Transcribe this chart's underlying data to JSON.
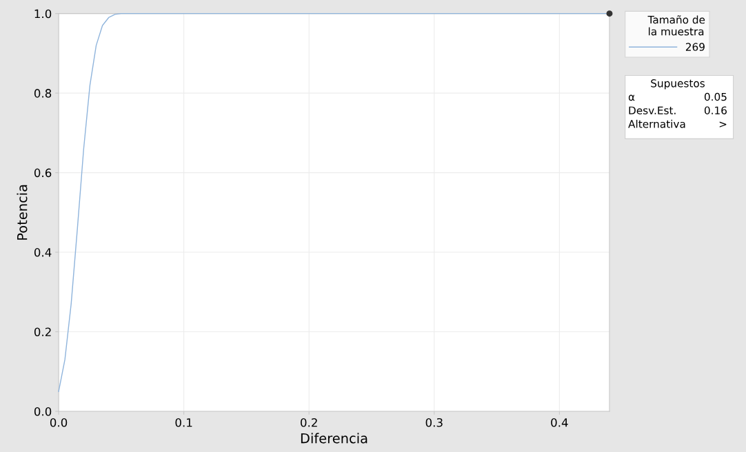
{
  "chart_data": {
    "type": "line",
    "xlabel": "Diferencia",
    "ylabel": "Potencia",
    "xlim": [
      0,
      0.44
    ],
    "ylim": [
      0,
      1
    ],
    "xticks": [
      {
        "value": 0,
        "label": "0.0"
      },
      0.1,
      0.2,
      0.3,
      0.4
    ],
    "yticks": [
      {
        "value": 0,
        "label": "0.0"
      },
      0.2,
      0.4,
      0.6,
      0.8,
      {
        "value": 1,
        "label": "1.0"
      }
    ],
    "grid": true,
    "legend": "top right",
    "legend_title": "Tamaño de\nla muestra",
    "series": [
      {
        "name": "269",
        "color": "#8fb4dc",
        "x": [
          0,
          0.005,
          0.01,
          0.015,
          0.02,
          0.025,
          0.03,
          0.035,
          0.04,
          0.045,
          0.05,
          0.06,
          0.07,
          0.1,
          0.2,
          0.3,
          0.4,
          0.44
        ],
        "values": [
          0.05,
          0.13,
          0.27,
          0.46,
          0.66,
          0.82,
          0.92,
          0.97,
          0.99,
          0.998,
          1,
          1,
          1,
          1,
          1,
          1,
          1,
          1
        ]
      },
      {
        "type": "scatter",
        "color": "#333333",
        "x": [
          0.44
        ],
        "values": [
          1
        ]
      }
    ],
    "annotations": [
      "Supuestos",
      "α",
      "0.05",
      "Desv.Est.",
      "0.16",
      "Alternativa",
      ">"
    ]
  }
}
